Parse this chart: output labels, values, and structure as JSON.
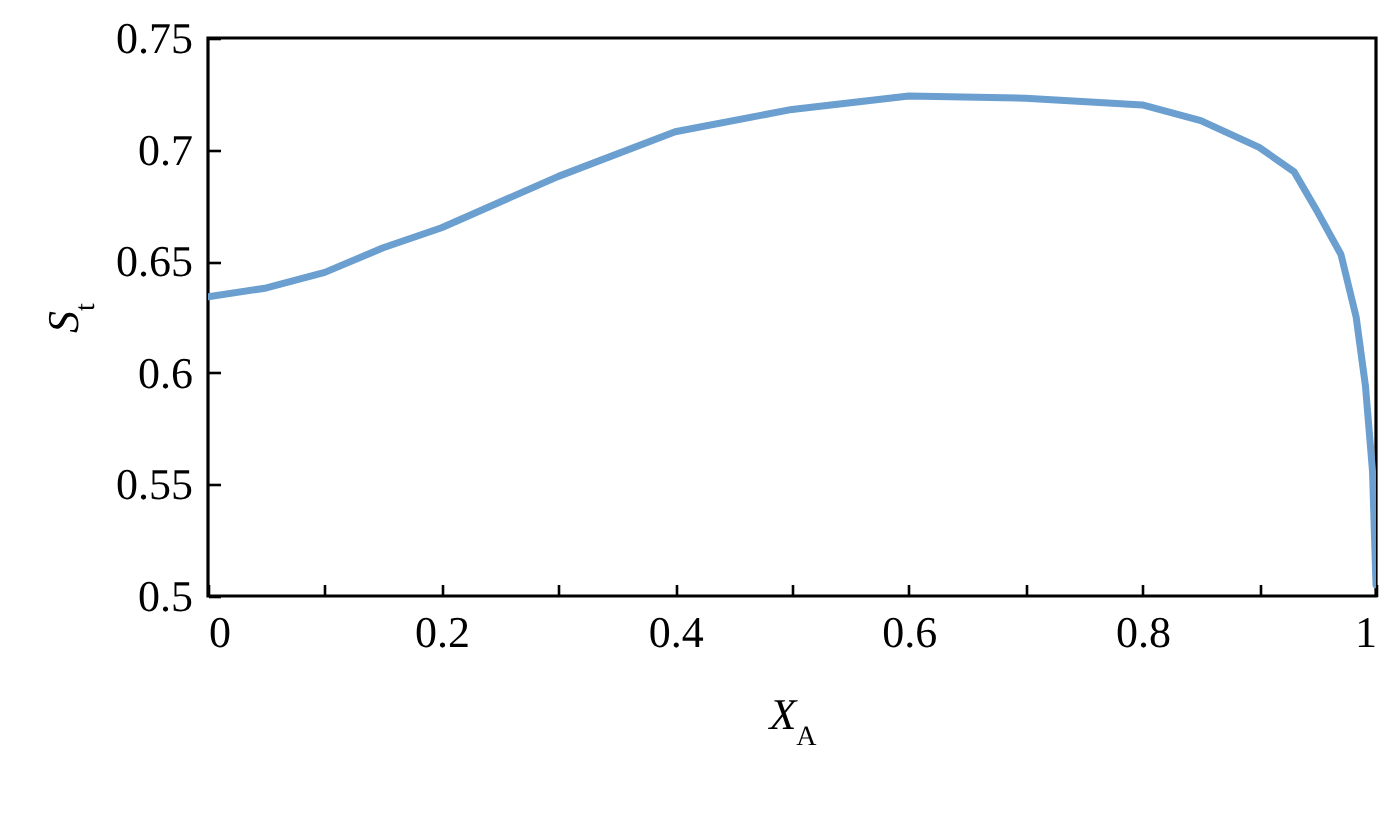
{
  "chart_data": {
    "type": "line",
    "xlabel": "X$_{A}$",
    "ylabel": "S$_{t}$",
    "x": [
      0,
      0.05,
      0.1,
      0.15,
      0.2,
      0.3,
      0.4,
      0.5,
      0.6,
      0.7,
      0.8,
      0.85,
      0.9,
      0.93,
      0.95,
      0.97,
      0.983,
      0.991,
      0.997,
      1.0
    ],
    "series": [
      {
        "color": "#6a9fd0",
        "values": [
          0.634,
          0.638,
          0.645,
          0.656,
          0.665,
          0.688,
          0.708,
          0.718,
          0.724,
          0.723,
          0.72,
          0.713,
          0.701,
          0.69,
          0.672,
          0.653,
          0.625,
          0.594,
          0.556,
          0.505
        ]
      }
    ],
    "xlim": [
      0,
      1
    ],
    "ylim": [
      0.5,
      0.75
    ],
    "xticks": [
      0,
      {
        "value": 0.1,
        "label": null
      },
      0.2,
      {
        "value": 0.3,
        "label": null
      },
      0.4,
      {
        "value": 0.5,
        "label": null
      },
      0.6,
      {
        "value": 0.7,
        "label": null
      },
      0.8,
      {
        "value": 0.9,
        "label": null
      },
      1
    ],
    "yticks": [
      0.5,
      0.55,
      0.6,
      0.65,
      0.7,
      0.75
    ],
    "grid": false,
    "marker": "none",
    "line_style": "solid"
  }
}
